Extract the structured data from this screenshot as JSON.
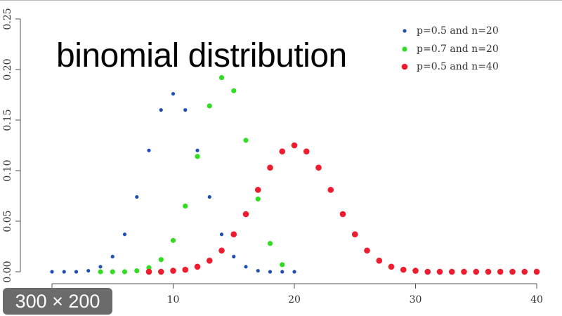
{
  "chart_data": {
    "type": "scatter",
    "title": "binomial distribution",
    "xlabel": "",
    "ylabel": "",
    "xlim": [
      0,
      40
    ],
    "ylim": [
      0,
      0.25
    ],
    "x_ticks": [
      "10",
      "20",
      "30",
      "40"
    ],
    "x_tick_values": [
      0,
      10,
      20,
      30,
      40
    ],
    "y_ticks": [
      "0.00",
      "0.05",
      "0.10",
      "0.15",
      "0.20",
      "0.25"
    ],
    "y_tick_values": [
      0,
      0.05,
      0.1,
      0.15,
      0.2,
      0.25
    ],
    "legend_position": "top-right",
    "grid": false,
    "series": [
      {
        "name": "p=0.5 and n=20",
        "color": "#1f4fb5",
        "x": [
          0,
          1,
          2,
          3,
          4,
          5,
          6,
          7,
          8,
          9,
          10,
          11,
          12,
          13,
          14,
          15,
          16,
          17,
          18,
          19,
          20
        ],
        "y": [
          0,
          0,
          0,
          0.001,
          0.005,
          0.015,
          0.037,
          0.074,
          0.12,
          0.16,
          0.176,
          0.16,
          0.12,
          0.074,
          0.037,
          0.015,
          0.005,
          0.001,
          0,
          0,
          0
        ]
      },
      {
        "name": "p=0.7 and n=20",
        "color": "#33dd22",
        "x": [
          4,
          5,
          6,
          7,
          8,
          9,
          10,
          11,
          12,
          13,
          14,
          15,
          16,
          17,
          18,
          19
        ],
        "y": [
          0,
          0,
          0,
          0.001,
          0.004,
          0.012,
          0.031,
          0.065,
          0.114,
          0.164,
          0.192,
          0.179,
          0.13,
          0.072,
          0.028,
          0.007
        ]
      },
      {
        "name": "p=0.5 and n=40",
        "color": "#ee1c2e",
        "x": [
          8,
          9,
          10,
          11,
          12,
          13,
          14,
          15,
          16,
          17,
          18,
          19,
          20,
          21,
          22,
          23,
          24,
          25,
          26,
          27,
          28,
          29,
          30,
          31,
          32,
          33,
          34,
          35,
          36,
          37,
          38,
          39,
          40
        ],
        "y": [
          0,
          0,
          0.001,
          0.002,
          0.005,
          0.011,
          0.021,
          0.037,
          0.057,
          0.081,
          0.103,
          0.119,
          0.125,
          0.119,
          0.103,
          0.081,
          0.057,
          0.037,
          0.021,
          0.011,
          0.005,
          0.002,
          0.001,
          0,
          0,
          0,
          0,
          0,
          0,
          0,
          0,
          0,
          0
        ]
      }
    ]
  },
  "badge": {
    "size_label": "300 × 200"
  }
}
